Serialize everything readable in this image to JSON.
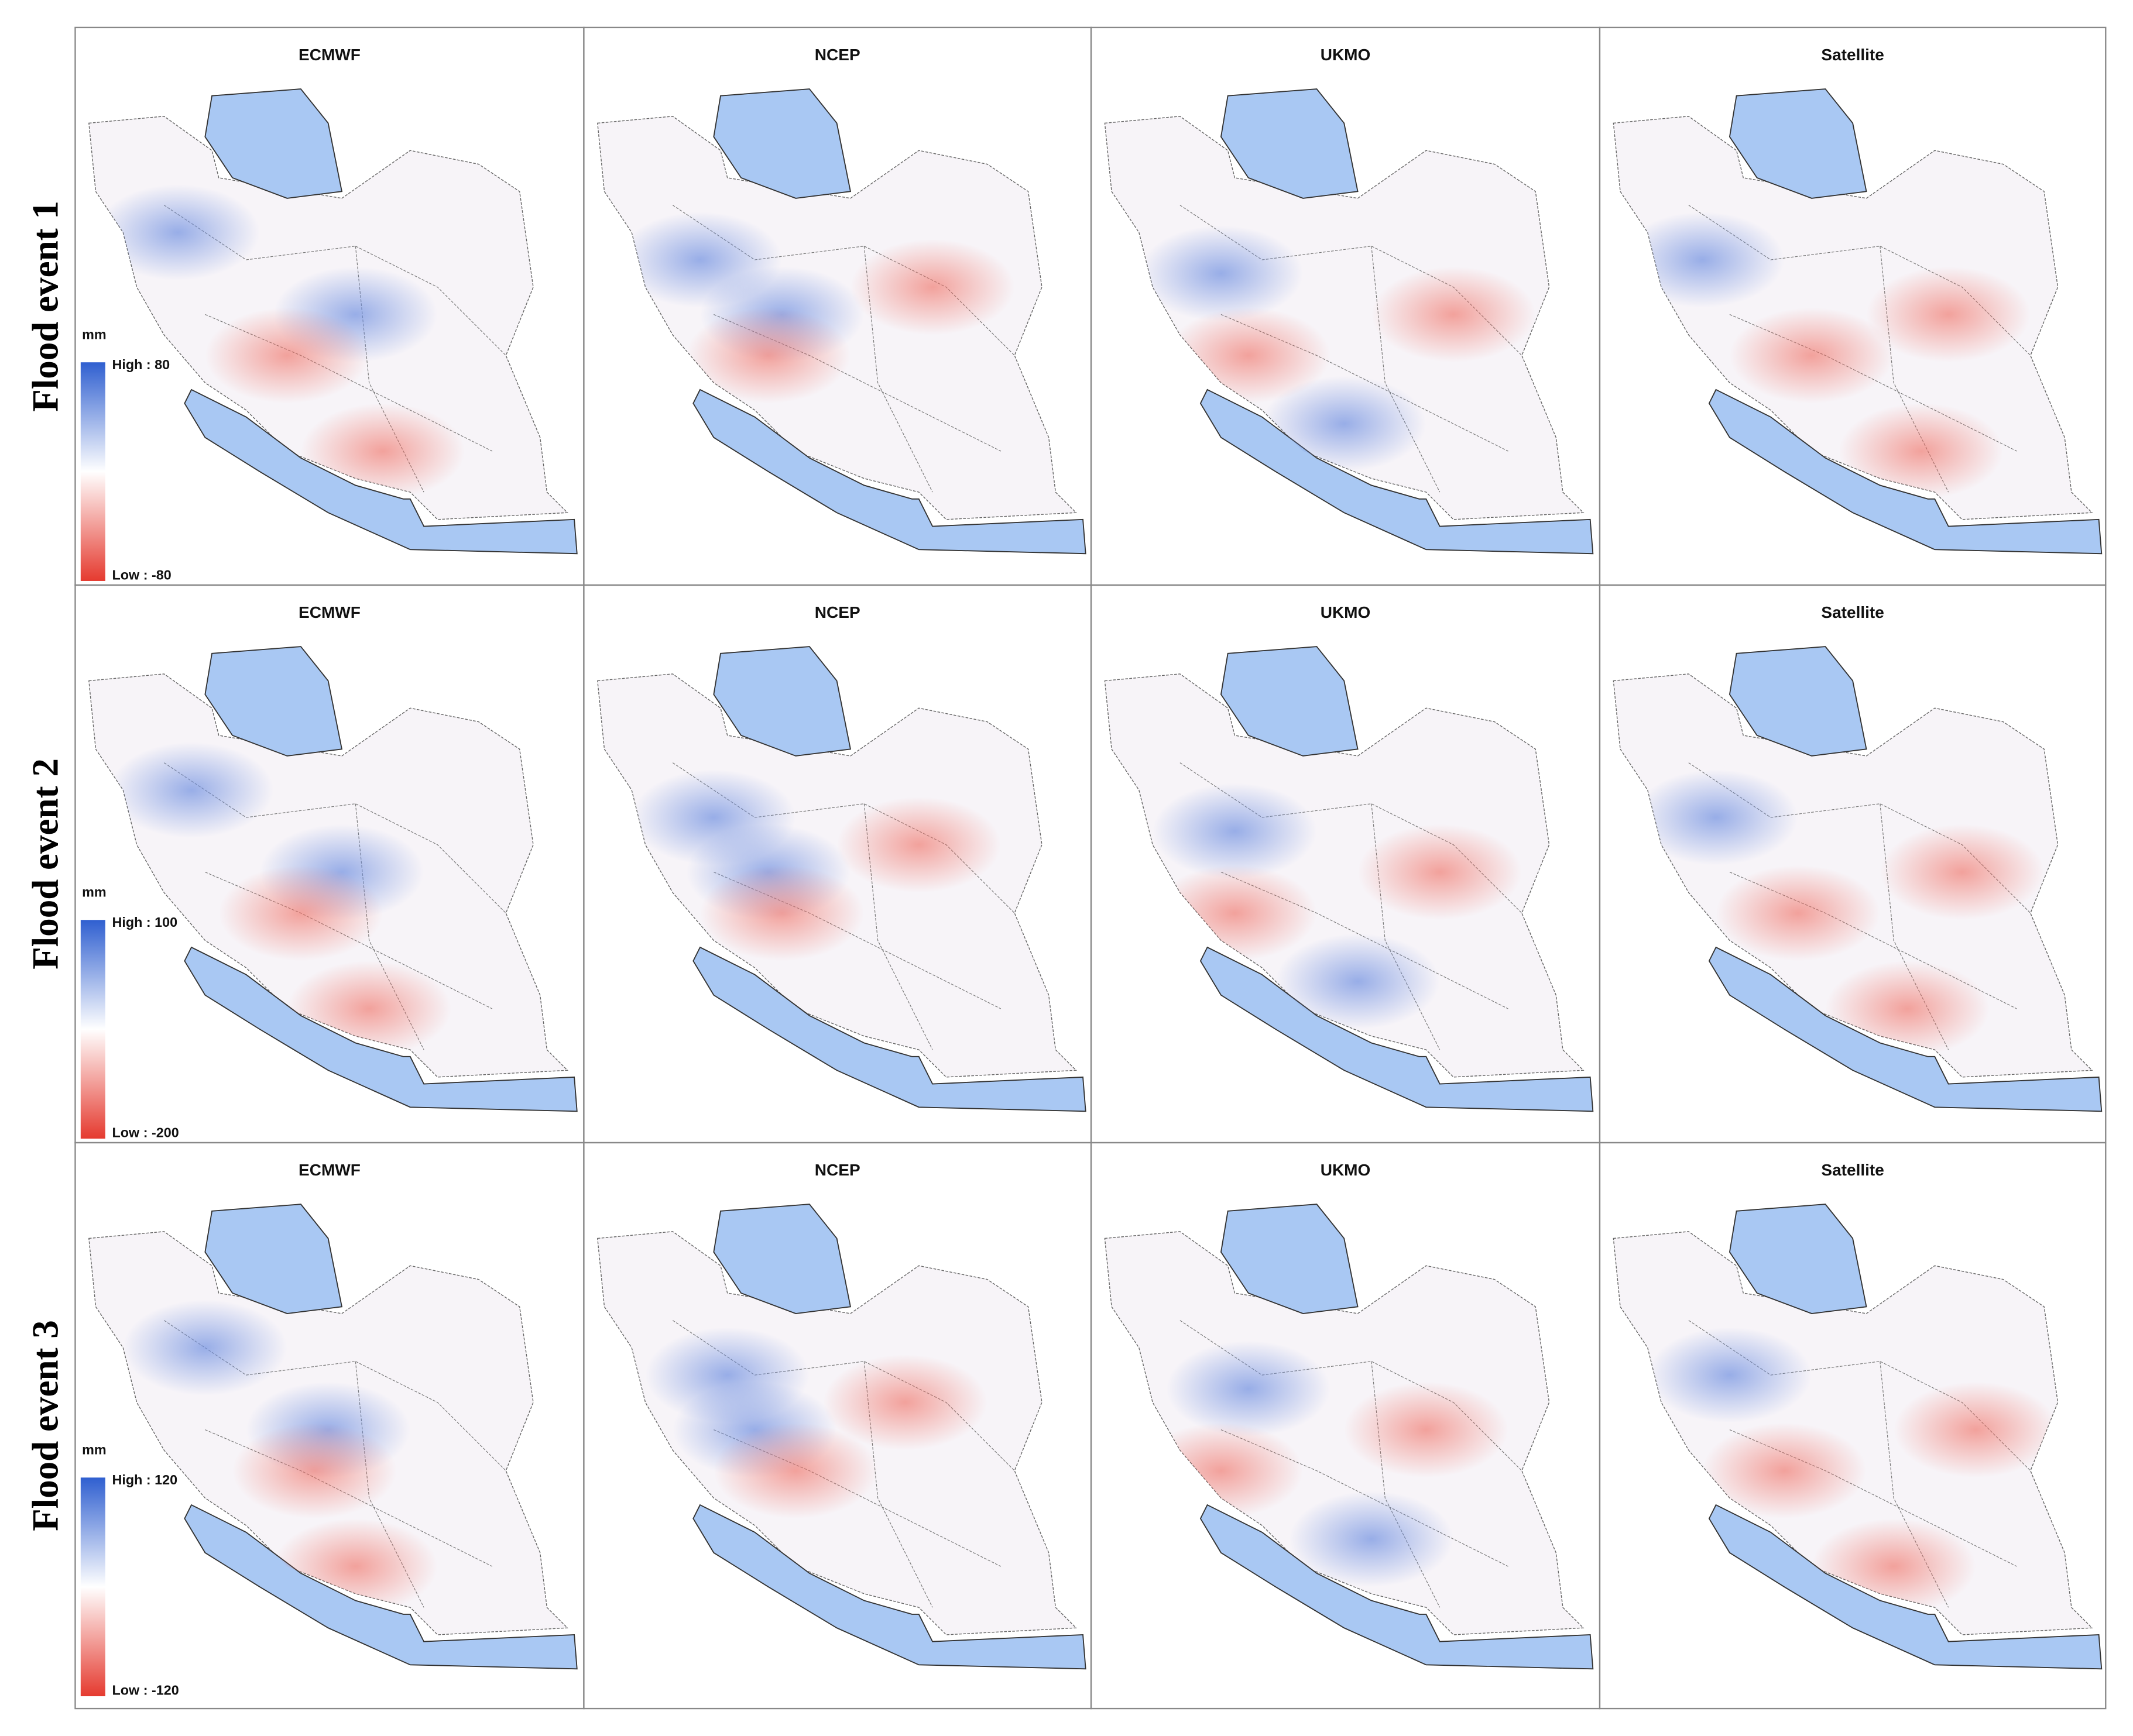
{
  "rows": [
    {
      "label": "Flood event 1",
      "legend": {
        "unit": "mm",
        "high": "High : 80",
        "low": "Low : -80"
      },
      "panels": [
        "ECMWF",
        "NCEP",
        "UKMO",
        "Satellite"
      ]
    },
    {
      "label": "Flood event 2",
      "legend": {
        "unit": "mm",
        "high": "High : 100",
        "low": "Low : -200"
      },
      "panels": [
        "ECMWF",
        "NCEP",
        "UKMO",
        "Satellite"
      ]
    },
    {
      "label": "Flood event 3",
      "legend": {
        "unit": "mm",
        "high": "High : 120",
        "low": "Low : -120"
      },
      "panels": [
        "ECMWF",
        "NCEP",
        "UKMO",
        "Satellite"
      ]
    }
  ]
}
